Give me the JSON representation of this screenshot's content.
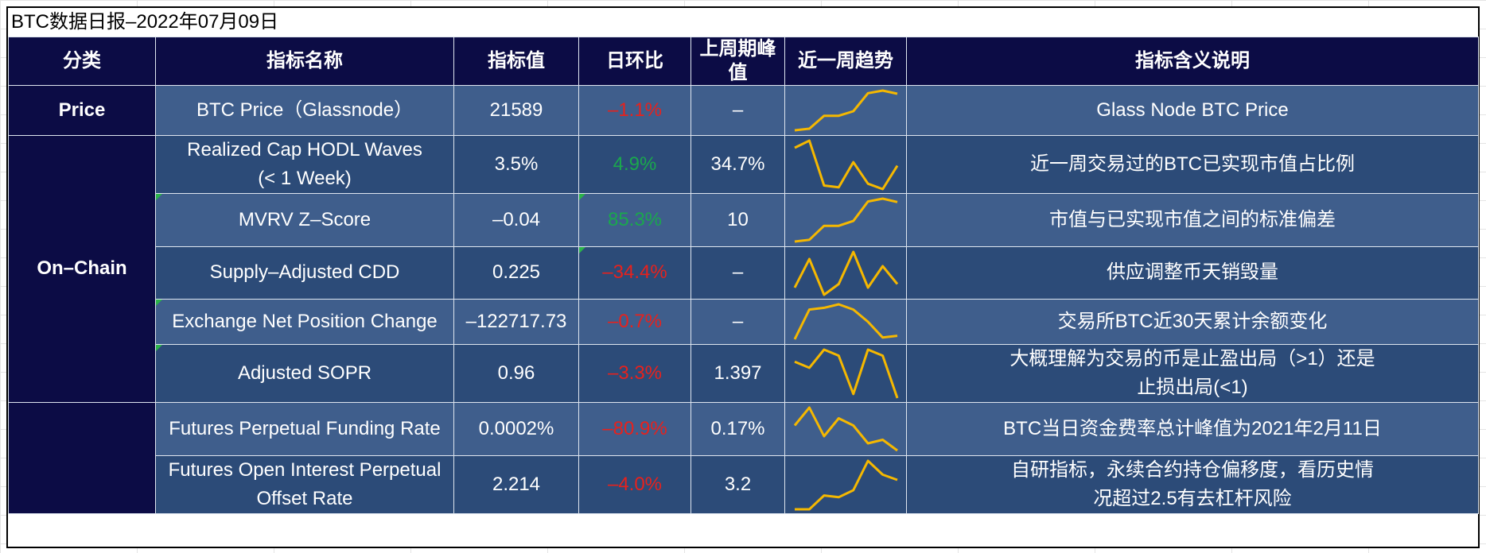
{
  "title": "BTC数据日报–2022年07月09日",
  "headers": [
    "分类",
    "指标名称",
    "指标值",
    "日环比",
    "上周期峰值",
    "近一周趋势",
    "指标含义说明"
  ],
  "categories": {
    "price": "Price",
    "onchain": "On–Chain",
    "derivatives": ""
  },
  "rows": [
    {
      "name": "BTC Price（Glassnode）",
      "value": "21589",
      "change": "–1.1%",
      "change_sign": "neg",
      "peak": "–",
      "desc": "Glass Node BTC Price",
      "trend": [
        1,
        1.6,
        6.5,
        6.5,
        8.2,
        15,
        16,
        14.8
      ]
    },
    {
      "name_line1": "Realized Cap HODL Waves",
      "name_line2": "(< 1 Week)",
      "value": "3.5%",
      "change": "4.9%",
      "change_sign": "pos",
      "peak": "34.7%",
      "desc": "近一周交易过的BTC已实现市值占比例",
      "trend": [
        14,
        16,
        3.5,
        3,
        10,
        4,
        2.5,
        9
      ]
    },
    {
      "name": "MVRV Z–Score",
      "value": "–0.04",
      "change": "85.3%",
      "change_sign": "pos",
      "peak": "10",
      "desc": "市值与已实现市值之间的标准偏差",
      "trend": [
        1,
        1.6,
        6.5,
        6.5,
        8.2,
        15,
        16,
        14.8
      ]
    },
    {
      "name": "Supply–Adjusted CDD",
      "value": "0.225",
      "change": "–34.4%",
      "change_sign": "neg",
      "peak": "–",
      "desc": "供应调整币天销毁量",
      "trend": [
        4,
        12,
        2,
        5,
        14,
        4,
        10,
        5
      ]
    },
    {
      "name": "Exchange Net Position Change",
      "value": "–122717.73",
      "change": "–0.7%",
      "change_sign": "neg",
      "peak": "–",
      "desc": "交易所BTC近30天累计余额变化",
      "trend": [
        2,
        10.5,
        11,
        12,
        10.5,
        7,
        2.5,
        3
      ]
    },
    {
      "name": "Adjusted SOPR",
      "value": "0.96",
      "change": "–3.3%",
      "change_sign": "neg",
      "peak": "1.397",
      "desc_line1": "大概理解为交易的币是止盈出局（>1）还是",
      "desc_line2": "止损出局(<1)",
      "trend": [
        10,
        8.5,
        13,
        11.5,
        2,
        13,
        11.5,
        1
      ]
    },
    {
      "name": "Futures Perpetual Funding Rate",
      "value": "0.0002%",
      "change": "–80.9%",
      "change_sign": "neg",
      "peak": "0.17%",
      "desc": "BTC当日资金费率总计峰值为2021年2月11日",
      "trend": [
        9,
        14,
        6,
        11,
        9,
        4,
        5,
        2
      ]
    },
    {
      "name_line1": "Futures Open Interest Perpetual",
      "name_line2": "Offset Rate",
      "value": "2.214",
      "change": "–4.0%",
      "change_sign": "neg",
      "peak": "3.2",
      "desc_line1": "自研指标，永续合约持仓偏移度，看历史情",
      "desc_line2": "况超过2.5有去杠杆风险",
      "trend": [
        1,
        1,
        5,
        4.5,
        6.5,
        15,
        11,
        9.5
      ]
    }
  ],
  "colors": {
    "header_bg": "#0c0c45",
    "row_light": "#3f5e8c",
    "row_dark": "#2c4b78",
    "negative": "#e8211c",
    "positive": "#1aa84d",
    "sparkline": "#f5b800"
  }
}
